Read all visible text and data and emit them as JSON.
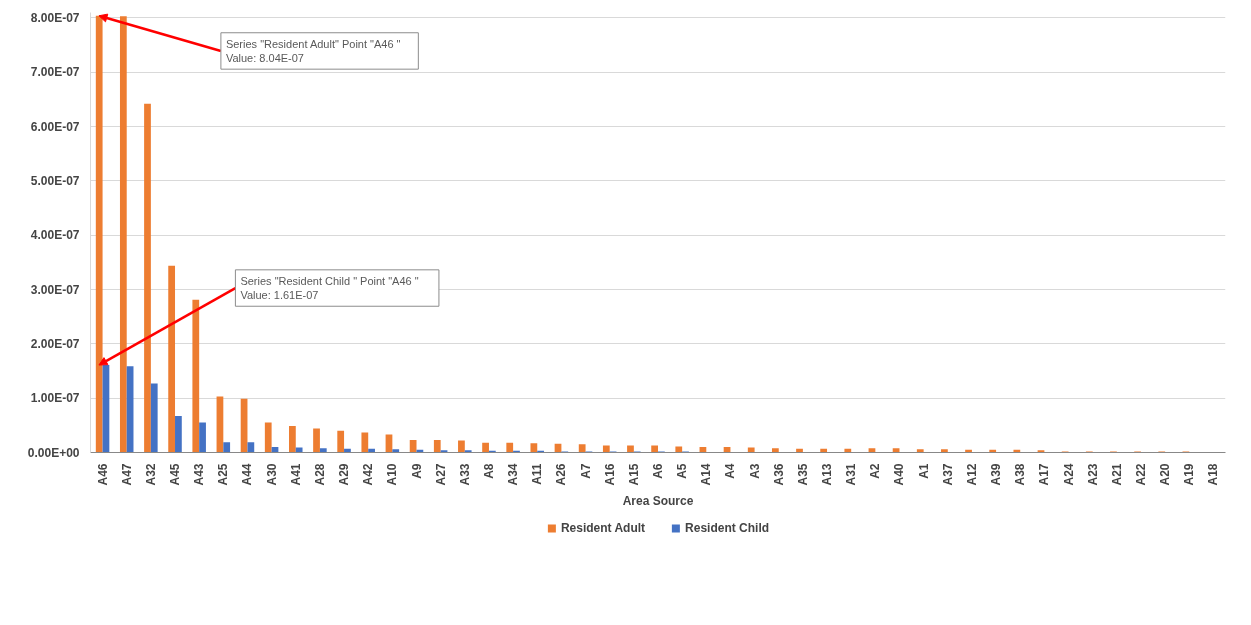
{
  "chart_data": {
    "type": "bar",
    "xlabel": "Area Source",
    "categories": [
      "A46",
      "A47",
      "A32",
      "A45",
      "A43",
      "A25",
      "A44",
      "A30",
      "A41",
      "A28",
      "A29",
      "A42",
      "A10",
      "A9",
      "A27",
      "A33",
      "A8",
      "A34",
      "A11",
      "A26",
      "A7",
      "A16",
      "A15",
      "A6",
      "A5",
      "A14",
      "A4",
      "A3",
      "A36",
      "A35",
      "A13",
      "A31",
      "A2",
      "A40",
      "A1",
      "A37",
      "A12",
      "A39",
      "A38",
      "A17",
      "A24",
      "A23",
      "A21",
      "A22",
      "A20",
      "A19",
      "A18"
    ],
    "series": [
      {
        "name": "Resident Adult",
        "color": "#ed7d31",
        "values": [
          8.04e-07,
          8.03e-07,
          6.42e-07,
          3.44e-07,
          2.81e-07,
          1.03e-07,
          9.9e-08,
          5.5e-08,
          4.9e-08,
          4.4e-08,
          4e-08,
          3.7e-08,
          3.3e-08,
          2.3e-08,
          2.3e-08,
          2.2e-08,
          1.8e-08,
          1.8e-08,
          1.7e-08,
          1.6e-08,
          1.5e-08,
          1.3e-08,
          1.3e-08,
          1.3e-08,
          1.1e-08,
          1e-08,
          1e-08,
          9e-09,
          8e-09,
          7e-09,
          7e-09,
          7e-09,
          8e-09,
          8e-09,
          6e-09,
          6e-09,
          5e-09,
          5e-09,
          5e-09,
          4e-09,
          2e-09,
          2e-09,
          2e-09,
          2e-09,
          2e-09,
          2e-09,
          0
        ]
      },
      {
        "name": "Resident Child",
        "color": "#4472c4",
        "values": [
          1.61e-07,
          1.59e-07,
          1.27e-07,
          6.7e-08,
          5.5e-08,
          1.9e-08,
          1.9e-08,
          1e-08,
          9e-09,
          8e-09,
          7e-09,
          7e-09,
          6e-09,
          5e-09,
          4e-09,
          4e-09,
          3e-09,
          3e-09,
          3e-09,
          2e-09,
          2e-09,
          2e-09,
          2e-09,
          2e-09,
          2e-09,
          1e-09,
          1e-09,
          1e-09,
          1e-09,
          1e-09,
          1e-09,
          1e-09,
          1e-09,
          1e-09,
          1e-09,
          1e-09,
          1e-09,
          1e-09,
          1e-09,
          1e-09,
          0,
          0,
          0,
          0,
          0,
          0,
          0
        ]
      }
    ],
    "ylim": [
      0,
      8.1e-07
    ],
    "yticks": [
      {
        "value": 0,
        "label": "0.00E+00"
      },
      {
        "value": 1e-07,
        "label": "1.00E-07"
      },
      {
        "value": 2e-07,
        "label": "2.00E-07"
      },
      {
        "value": 3e-07,
        "label": "3.00E-07"
      },
      {
        "value": 4e-07,
        "label": "4.00E-07"
      },
      {
        "value": 5e-07,
        "label": "5.00E-07"
      },
      {
        "value": 6e-07,
        "label": "6.00E-07"
      },
      {
        "value": 7e-07,
        "label": "7.00E-07"
      },
      {
        "value": 8e-07,
        "label": "8.00E-07"
      }
    ],
    "grid": "y",
    "legend": "bottom",
    "annotations": [
      {
        "text": "Series \"Resident Adult\" Point \"A46     \"\nValue: 8.04E-07",
        "x": "A46",
        "y": 8.04e-07
      },
      {
        "text": "Series \"Resident Child  \" Point \"A46     \"\nValue: 1.61E-07",
        "x": "A46",
        "y": 1.61e-07
      }
    ]
  }
}
